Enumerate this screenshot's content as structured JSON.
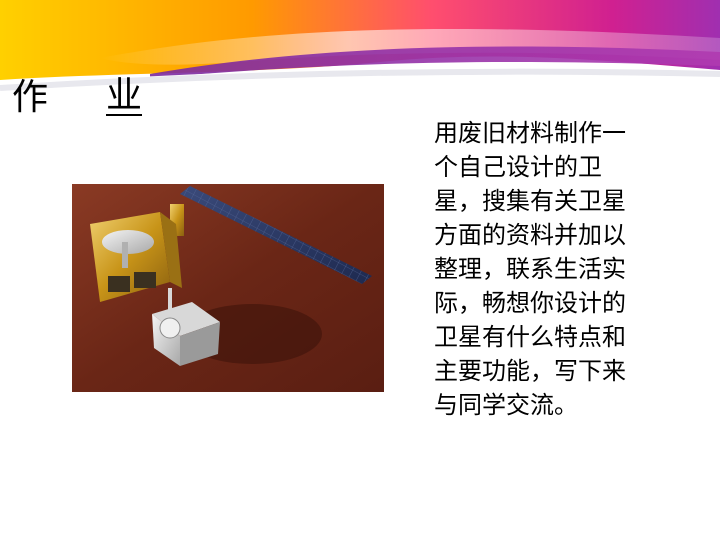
{
  "slide": {
    "title_part1": "作",
    "title_part2": "业",
    "body_lines": [
      "用废旧材料制作一",
      "个自己设计的卫",
      "星，搜集有关卫星",
      "方面的资料并加以",
      "整理，联系生活实",
      "际，畅想你设计的",
      "卫星有什么特点和",
      "主要功能，写下来",
      "与同学交流。"
    ]
  },
  "colors": {
    "banner_orange": "#f5a000",
    "banner_magenta": "#d02080",
    "banner_purple": "#7a2a9a",
    "table_brown": "#6b2a1a",
    "solar_panel": "#2a3a6a",
    "gold_foil": "#d4a020"
  },
  "image": {
    "subject": "satellite-model-photo"
  }
}
